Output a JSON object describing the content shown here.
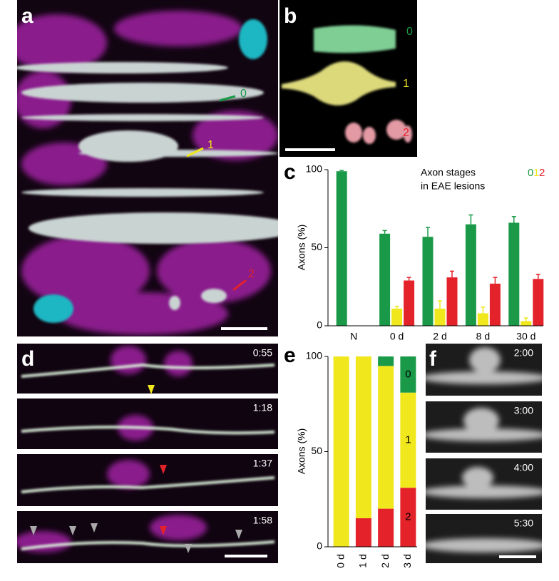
{
  "panels": {
    "a": {
      "label": "a",
      "annotations": [
        "0",
        "1",
        "2"
      ]
    },
    "b": {
      "label": "b",
      "stages": [
        "0",
        "1",
        "2"
      ]
    },
    "c": {
      "label": "c"
    },
    "d": {
      "label": "d",
      "times": [
        "0:55",
        "1:18",
        "1:37",
        "1:58"
      ]
    },
    "e": {
      "label": "e"
    },
    "f": {
      "label": "f",
      "times": [
        "2:00",
        "3:00",
        "4:00",
        "5:30"
      ]
    }
  },
  "chart_data": [
    {
      "type": "bar",
      "title": [
        "Axon stages",
        "in EAE lesions"
      ],
      "ylabel": "Axons (%)",
      "categories": [
        "N",
        "0 d",
        "2 d",
        "8 d",
        "30 d"
      ],
      "series": [
        {
          "name": "0",
          "color": "#1a9a48",
          "values": [
            99,
            59,
            57,
            65,
            66
          ],
          "errors": [
            0.5,
            2,
            6,
            6,
            4
          ]
        },
        {
          "name": "1",
          "color": "#f0e71c",
          "values": [
            0,
            11,
            11,
            8,
            3
          ],
          "errors": [
            0,
            1.5,
            5,
            4,
            2
          ]
        },
        {
          "name": "2",
          "color": "#e3222a",
          "values": [
            0,
            29,
            31,
            27,
            30
          ],
          "errors": [
            0,
            2,
            4,
            4,
            3
          ]
        }
      ],
      "ylim": [
        0,
        100
      ],
      "yticks": [
        0,
        50,
        100
      ]
    },
    {
      "type": "stacked_bar",
      "ylabel": "Axons (%)",
      "categories": [
        "0 d",
        "1 d",
        "2 d",
        "3 d"
      ],
      "series": [
        {
          "name": "2",
          "color": "#e3222a",
          "values": [
            0,
            15,
            20,
            31
          ]
        },
        {
          "name": "1",
          "color": "#f0e71c",
          "values": [
            100,
            85,
            75,
            50
          ]
        },
        {
          "name": "0",
          "color": "#1a9a48",
          "values": [
            0,
            0,
            5,
            19
          ]
        }
      ],
      "ylim": [
        0,
        100
      ],
      "yticks": [
        0,
        50,
        100
      ]
    }
  ]
}
